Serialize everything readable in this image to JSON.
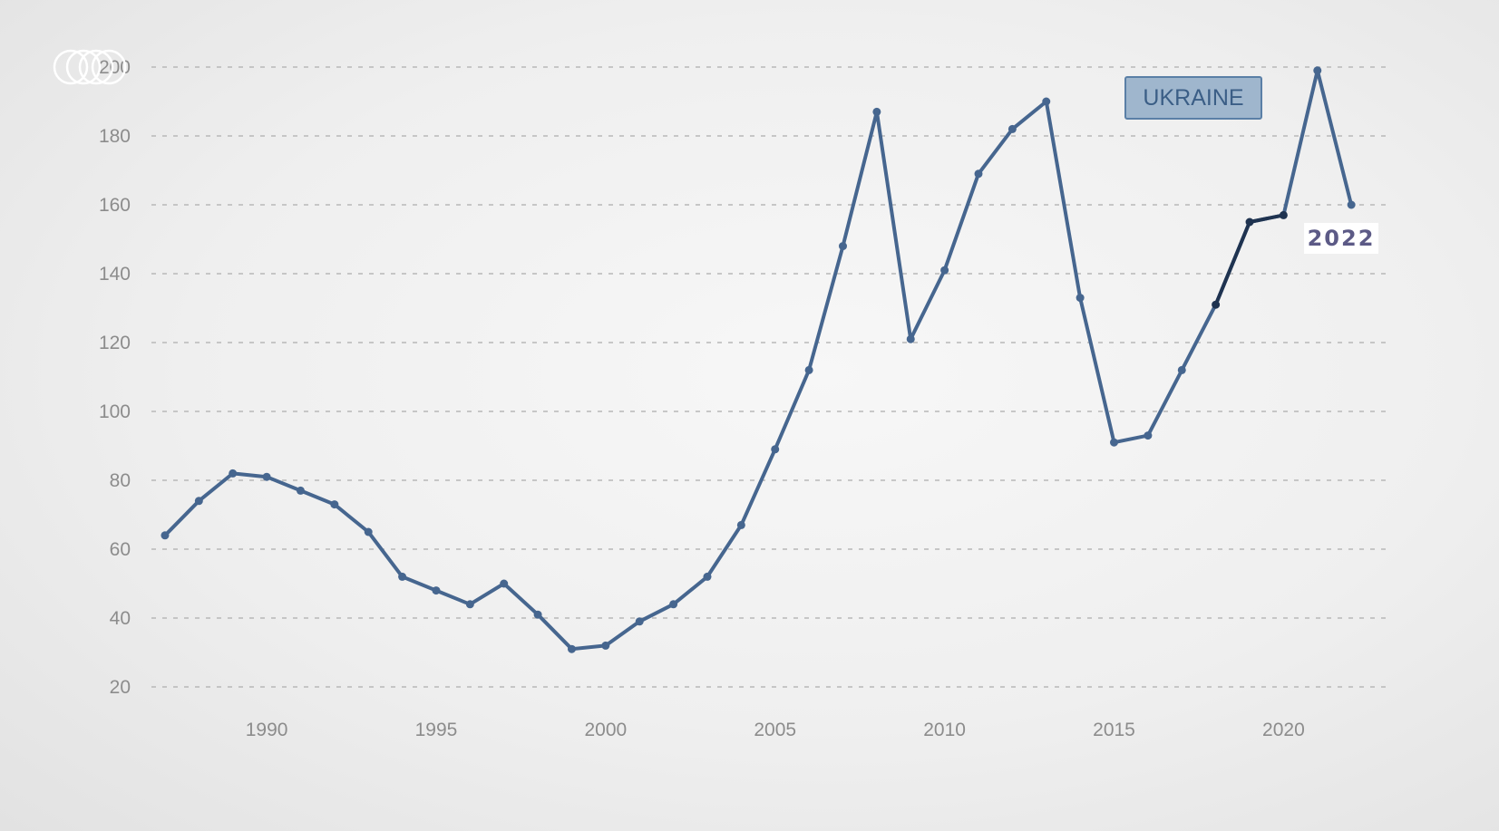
{
  "chart_data": {
    "type": "line",
    "title": "",
    "xlabel": "",
    "ylabel": "",
    "xlim": [
      1986.6,
      2023.2
    ],
    "ylim": [
      20,
      200
    ],
    "x_ticks": [
      1990,
      1995,
      2000,
      2005,
      2010,
      2015,
      2020
    ],
    "y_ticks": [
      20,
      40,
      60,
      80,
      100,
      120,
      140,
      160,
      180,
      200
    ],
    "grid": true,
    "legend": "top-right",
    "line_color": "#46668f",
    "highlight_color": "#1f3350",
    "series": [
      {
        "name": "UKRAINE",
        "x": [
          1987,
          1988,
          1989,
          1990,
          1991,
          1992,
          1993,
          1994,
          1995,
          1996,
          1997,
          1998,
          1999,
          2000,
          2001,
          2002,
          2003,
          2004,
          2005,
          2006,
          2007,
          2008,
          2009,
          2010,
          2011,
          2012,
          2013,
          2014,
          2015,
          2016,
          2017,
          2018,
          2019,
          2020,
          2021,
          2022
        ],
        "y": [
          64,
          74,
          82,
          81,
          77,
          73,
          65,
          52,
          48,
          44,
          50,
          41,
          31,
          32,
          39,
          44,
          52,
          67,
          89,
          112,
          148,
          187,
          121,
          141,
          169,
          182,
          190,
          133,
          91,
          93,
          112,
          131,
          155,
          157,
          199,
          160
        ],
        "highlight_from": 2018,
        "highlight_to": 2020
      }
    ],
    "annotations": [
      {
        "x": 2022,
        "text": "2022"
      }
    ]
  },
  "legend": {
    "label": "UKRAINE"
  },
  "annotation": {
    "text": "2022"
  },
  "logo": {
    "icon": "channel-logo-rings-icon"
  }
}
